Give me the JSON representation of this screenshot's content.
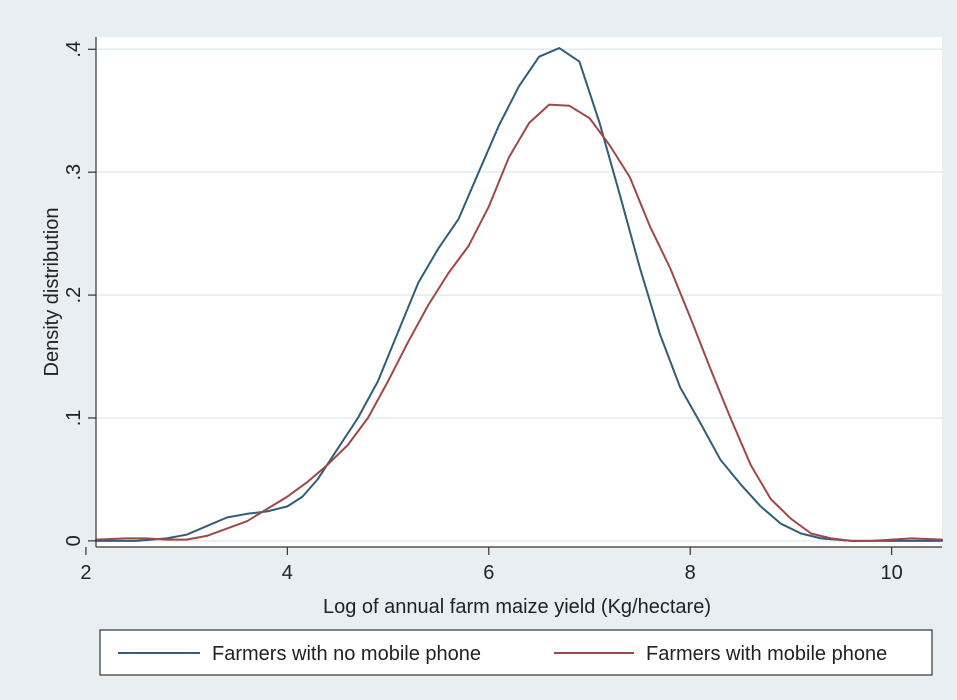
{
  "colors": {
    "outer_background": "#e9eef2",
    "plot_background": "#ffffff",
    "grid": "#e4ebef",
    "axis": "#333333",
    "series_no_phone": "#2f5d7a",
    "series_phone": "#a24747"
  },
  "chart_data": {
    "type": "line",
    "xlabel": "Log of annual farm maize yield (Kg/hectare)",
    "ylabel": "Density distribution",
    "xlim": [
      2.1,
      10.5
    ],
    "ylim": [
      -0.005,
      0.41
    ],
    "x_ticks": [
      2,
      4,
      6,
      8,
      10
    ],
    "x_tick_labels": [
      "2",
      "4",
      "6",
      "8",
      "10"
    ],
    "y_ticks": [
      0,
      0.1,
      0.2,
      0.3,
      0.4
    ],
    "y_tick_labels": [
      "0",
      ".1",
      ".2",
      ".3",
      ".4"
    ],
    "grid": "horizontal",
    "legend_position": "bottom",
    "series": [
      {
        "name": "Farmers with no mobile phone",
        "color": "#2f5d7a",
        "points": [
          [
            2.1,
            0.0
          ],
          [
            2.5,
            0.0
          ],
          [
            2.8,
            0.002
          ],
          [
            3.0,
            0.005
          ],
          [
            3.2,
            0.012
          ],
          [
            3.4,
            0.019
          ],
          [
            3.6,
            0.022
          ],
          [
            3.8,
            0.024
          ],
          [
            4.0,
            0.028
          ],
          [
            4.15,
            0.036
          ],
          [
            4.3,
            0.05
          ],
          [
            4.5,
            0.075
          ],
          [
            4.7,
            0.1
          ],
          [
            4.9,
            0.13
          ],
          [
            5.1,
            0.17
          ],
          [
            5.3,
            0.21
          ],
          [
            5.5,
            0.238
          ],
          [
            5.7,
            0.262
          ],
          [
            5.9,
            0.3
          ],
          [
            6.1,
            0.338
          ],
          [
            6.3,
            0.37
          ],
          [
            6.5,
            0.394
          ],
          [
            6.7,
            0.401
          ],
          [
            6.9,
            0.39
          ],
          [
            7.1,
            0.34
          ],
          [
            7.3,
            0.282
          ],
          [
            7.5,
            0.222
          ],
          [
            7.7,
            0.168
          ],
          [
            7.9,
            0.125
          ],
          [
            8.1,
            0.096
          ],
          [
            8.3,
            0.066
          ],
          [
            8.5,
            0.046
          ],
          [
            8.7,
            0.028
          ],
          [
            8.9,
            0.014
          ],
          [
            9.1,
            0.006
          ],
          [
            9.3,
            0.002
          ],
          [
            9.6,
            0.0
          ],
          [
            10.0,
            0.0
          ],
          [
            10.5,
            0.0
          ]
        ]
      },
      {
        "name": "Farmers with mobile phone",
        "color": "#a24747",
        "points": [
          [
            2.1,
            0.001
          ],
          [
            2.4,
            0.002
          ],
          [
            2.6,
            0.002
          ],
          [
            2.8,
            0.001
          ],
          [
            3.0,
            0.001
          ],
          [
            3.2,
            0.004
          ],
          [
            3.4,
            0.01
          ],
          [
            3.6,
            0.016
          ],
          [
            3.8,
            0.026
          ],
          [
            4.0,
            0.036
          ],
          [
            4.2,
            0.048
          ],
          [
            4.4,
            0.062
          ],
          [
            4.6,
            0.078
          ],
          [
            4.8,
            0.1
          ],
          [
            5.0,
            0.13
          ],
          [
            5.2,
            0.162
          ],
          [
            5.4,
            0.192
          ],
          [
            5.6,
            0.218
          ],
          [
            5.8,
            0.24
          ],
          [
            6.0,
            0.272
          ],
          [
            6.2,
            0.312
          ],
          [
            6.4,
            0.34
          ],
          [
            6.6,
            0.355
          ],
          [
            6.8,
            0.354
          ],
          [
            7.0,
            0.344
          ],
          [
            7.2,
            0.322
          ],
          [
            7.4,
            0.296
          ],
          [
            7.6,
            0.256
          ],
          [
            7.8,
            0.222
          ],
          [
            8.0,
            0.182
          ],
          [
            8.2,
            0.14
          ],
          [
            8.4,
            0.1
          ],
          [
            8.6,
            0.062
          ],
          [
            8.8,
            0.034
          ],
          [
            9.0,
            0.018
          ],
          [
            9.2,
            0.006
          ],
          [
            9.4,
            0.002
          ],
          [
            9.6,
            0.0
          ],
          [
            9.8,
            0.0
          ],
          [
            10.0,
            0.001
          ],
          [
            10.2,
            0.002
          ],
          [
            10.5,
            0.001
          ]
        ]
      }
    ]
  }
}
